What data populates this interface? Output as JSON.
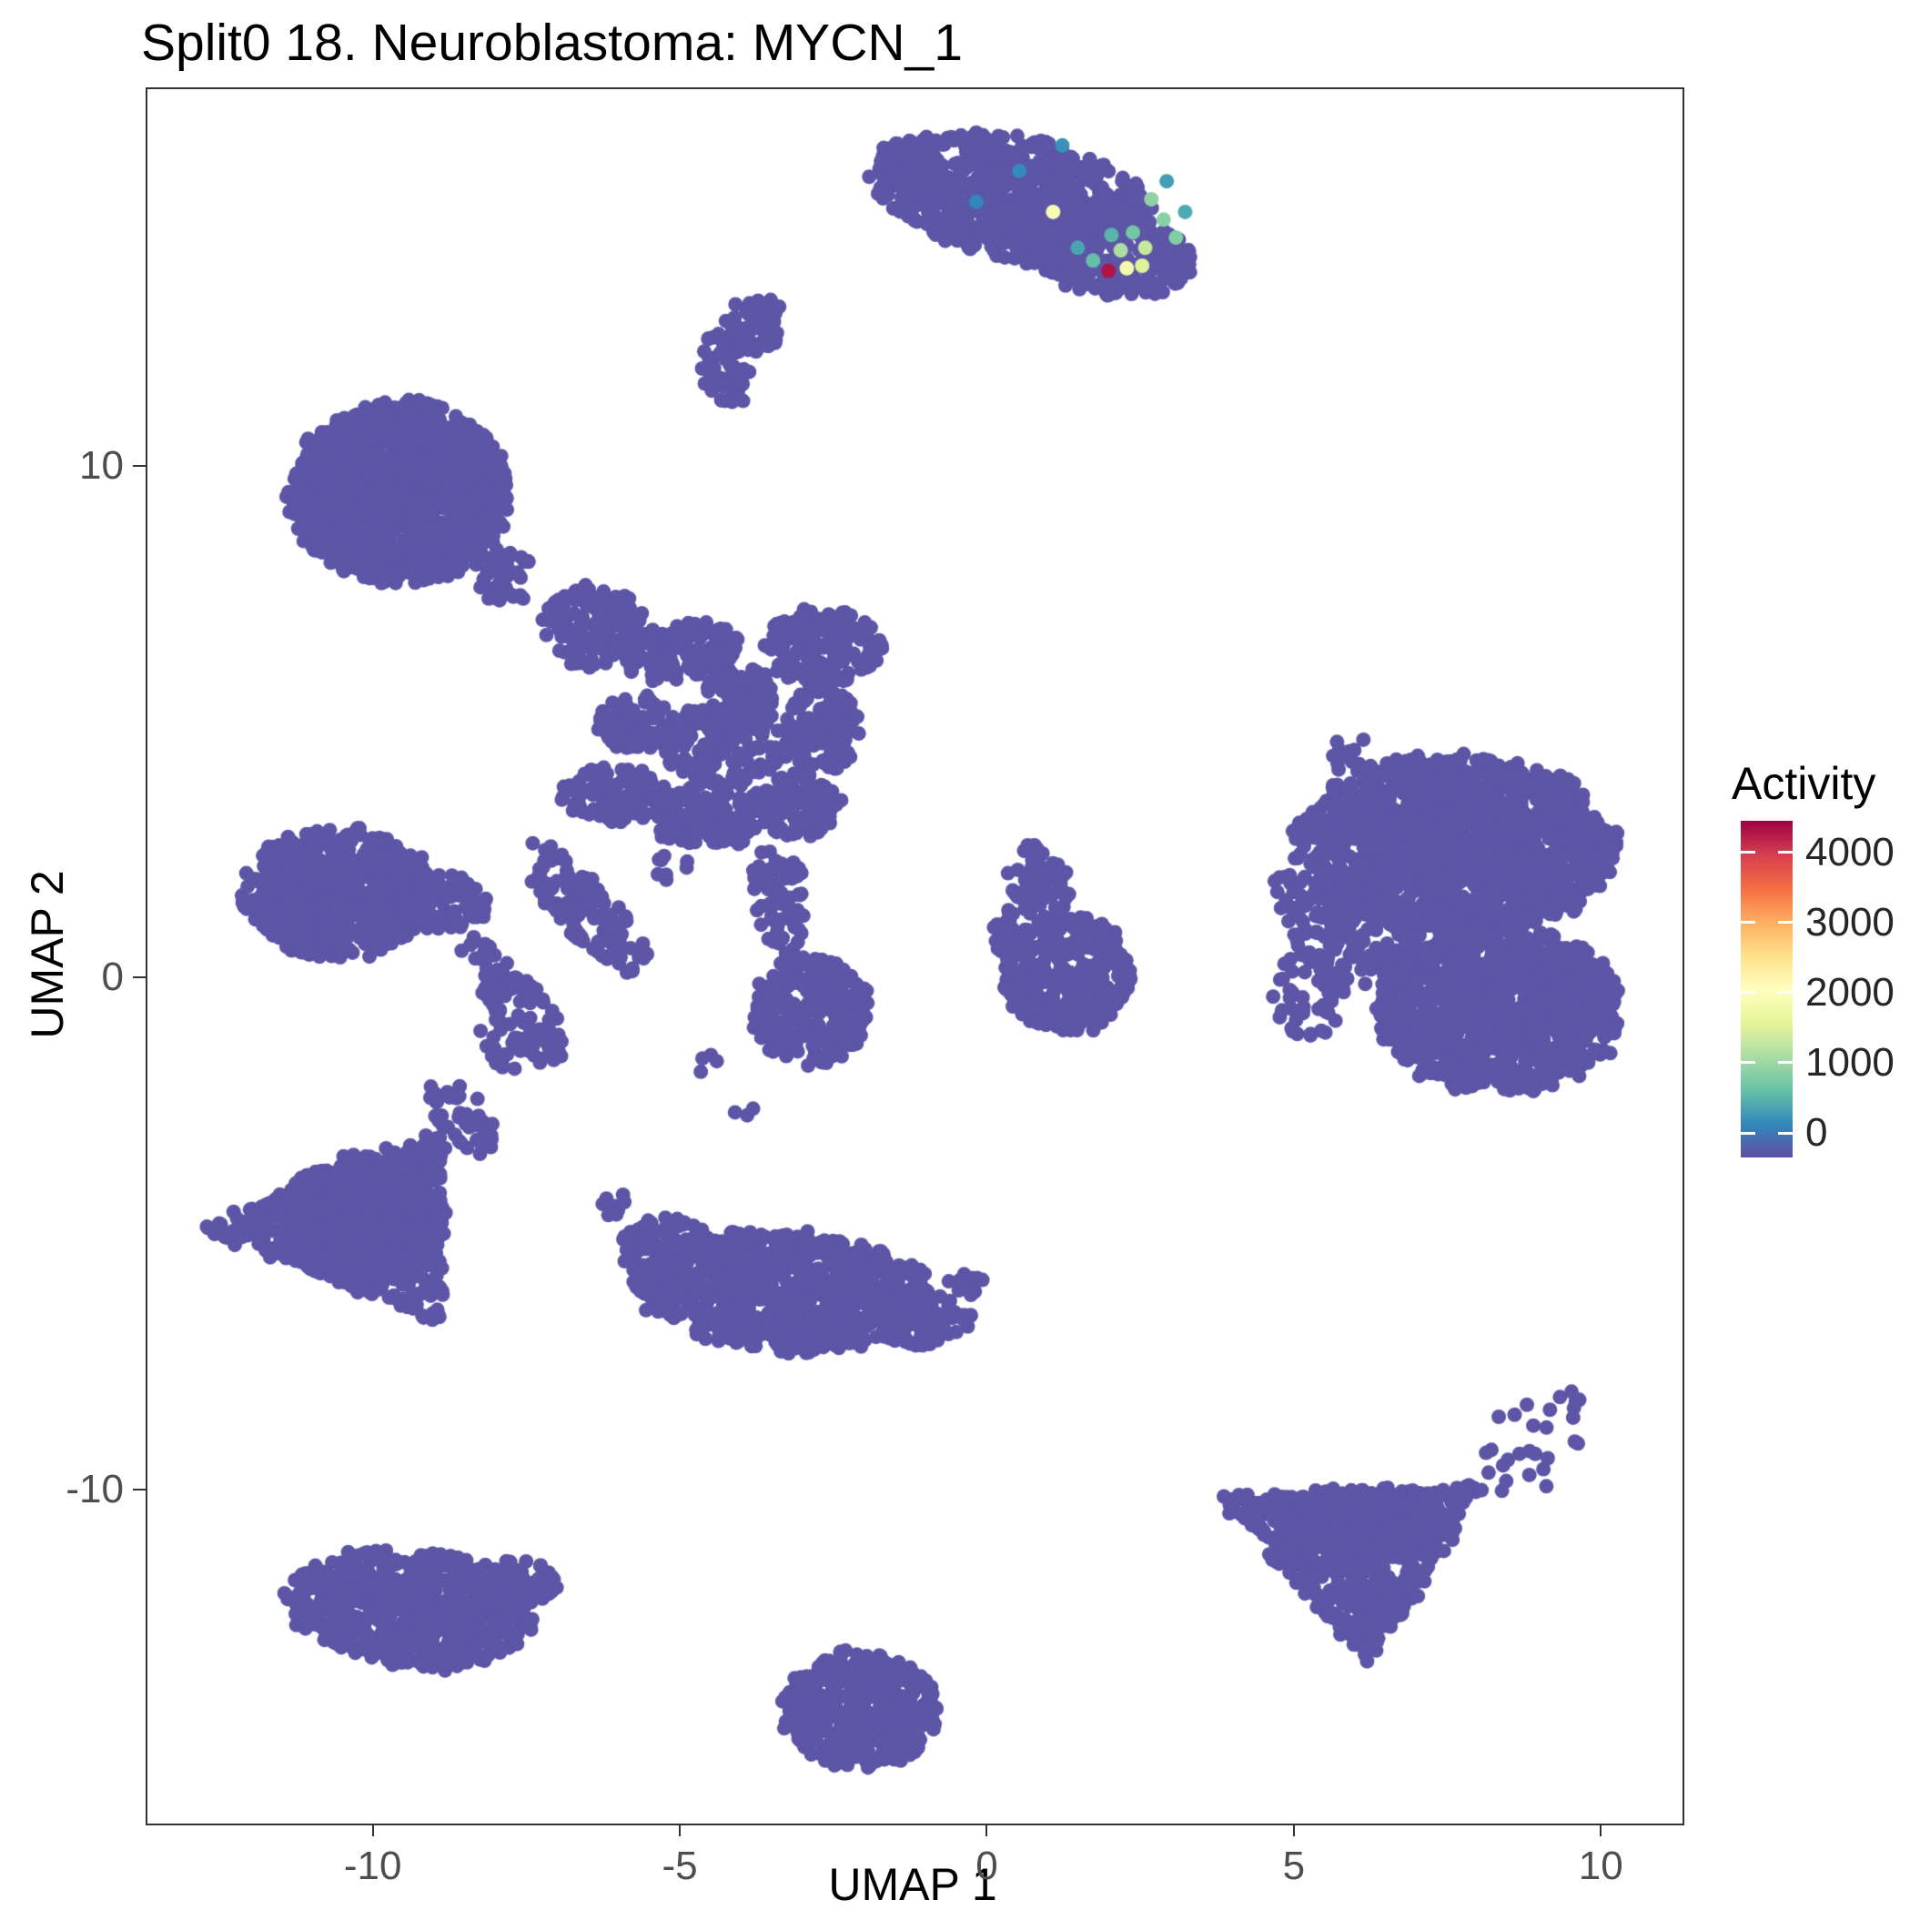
{
  "title": "Split0 18. Neuroblastoma: MYCN_1",
  "chart_data": {
    "type": "scatter",
    "title": "Split0 18. Neuroblastoma: MYCN_1",
    "xlabel": "UMAP 1",
    "ylabel": "UMAP 2",
    "xlim": [
      -13.7,
      11.3
    ],
    "ylim": [
      -16.5,
      17.4
    ],
    "x_ticks": [
      -10,
      -5,
      0,
      5,
      10
    ],
    "y_ticks": [
      -10,
      0,
      10
    ],
    "grid": false,
    "legend": {
      "title": "Activity",
      "position": "right",
      "ticks": [
        0,
        1000,
        2000,
        3000,
        4000
      ],
      "value_range": [
        -350,
        4450
      ],
      "colormap_name": "spectral-reversed",
      "colormap": [
        "#5E4FA2",
        "#3288BD",
        "#66C2A5",
        "#ABDDA4",
        "#E6F598",
        "#FFFFBF",
        "#FEE08B",
        "#FDAE61",
        "#F46D43",
        "#D53E4F",
        "#9E0142"
      ]
    },
    "style": {
      "base_point_color": "#5D55A6",
      "point_radius_px": 8,
      "panel_border_color": "#333333",
      "tick_label_color": "#4D4D4D",
      "axis_title_color": "#000000",
      "background": "#FFFFFF"
    },
    "clusters": [
      {
        "cx": 0.4,
        "cy": 15.3,
        "rx": 2.3,
        "ry": 1.15,
        "rot": -12,
        "n": 700
      },
      {
        "cx": 1.8,
        "cy": 14.3,
        "rx": 1.6,
        "ry": 0.85,
        "rot": -18,
        "n": 350
      },
      {
        "cx": -1.3,
        "cy": 15.9,
        "rx": 0.55,
        "ry": 0.5,
        "rot": 0,
        "n": 60
      },
      {
        "cx": -3.8,
        "cy": 12.8,
        "rx": 0.5,
        "ry": 0.55,
        "rot": 0,
        "n": 60
      },
      {
        "cx": -4.3,
        "cy": 11.9,
        "rx": 0.38,
        "ry": 0.75,
        "rot": 15,
        "n": 55
      },
      {
        "cx": -9.6,
        "cy": 9.5,
        "rx": 1.75,
        "ry": 1.75,
        "rot": 0,
        "n": 1400
      },
      {
        "cx": -7.9,
        "cy": 7.9,
        "rx": 0.5,
        "ry": 0.55,
        "rot": 0,
        "n": 40
      },
      {
        "cx": -6.4,
        "cy": 6.9,
        "rx": 0.85,
        "ry": 0.8,
        "rot": 0,
        "n": 140
      },
      {
        "cx": -5.0,
        "cy": 6.4,
        "rx": 0.95,
        "ry": 0.55,
        "rot": 15,
        "n": 130
      },
      {
        "cx": -2.7,
        "cy": 6.5,
        "rx": 0.95,
        "ry": 0.75,
        "rot": 0,
        "n": 170
      },
      {
        "cx": -4.0,
        "cy": 5.6,
        "rx": 0.6,
        "ry": 0.5,
        "rot": 0,
        "n": 80
      },
      {
        "cx": -5.7,
        "cy": 5.0,
        "rx": 0.65,
        "ry": 0.6,
        "rot": 0,
        "n": 90
      },
      {
        "cx": -4.3,
        "cy": 4.6,
        "rx": 1.05,
        "ry": 0.75,
        "rot": 0,
        "n": 170
      },
      {
        "cx": -2.7,
        "cy": 4.9,
        "rx": 0.6,
        "ry": 0.85,
        "rot": 0,
        "n": 110
      },
      {
        "cx": -6.1,
        "cy": 3.6,
        "rx": 0.85,
        "ry": 0.55,
        "rot": 0,
        "n": 110
      },
      {
        "cx": -4.5,
        "cy": 3.2,
        "rx": 0.95,
        "ry": 0.65,
        "rot": 10,
        "n": 150
      },
      {
        "cx": -3.1,
        "cy": 3.4,
        "rx": 0.7,
        "ry": 0.6,
        "rot": 0,
        "n": 100
      },
      {
        "cx": -6.6,
        "cy": 1.4,
        "rx": 0.5,
        "ry": 1.6,
        "rot": 38,
        "n": 130
      },
      {
        "cx": -7.6,
        "cy": -0.6,
        "rx": 0.45,
        "ry": 1.2,
        "rot": 30,
        "n": 90
      },
      {
        "cx": -3.4,
        "cy": 1.6,
        "rx": 0.45,
        "ry": 1.1,
        "rot": 8,
        "n": 70
      },
      {
        "cx": -2.9,
        "cy": -0.6,
        "rx": 0.95,
        "ry": 1.05,
        "rot": 0,
        "n": 260
      },
      {
        "cx": -5.2,
        "cy": 2.2,
        "rx": 0.3,
        "ry": 0.3,
        "rot": 0,
        "n": 8
      },
      {
        "cx": -4.6,
        "cy": -1.6,
        "rx": 0.25,
        "ry": 0.25,
        "rot": 0,
        "n": 4
      },
      {
        "cx": -4.0,
        "cy": -2.6,
        "rx": 0.2,
        "ry": 0.2,
        "rot": 0,
        "n": 3
      },
      {
        "cx": -10.6,
        "cy": 1.7,
        "rx": 1.55,
        "ry": 1.25,
        "rot": 0,
        "n": 600
      },
      {
        "cx": -8.9,
        "cy": 1.5,
        "rx": 0.8,
        "ry": 0.55,
        "rot": -20,
        "n": 90
      },
      {
        "cx": -8.3,
        "cy": 0.6,
        "rx": 0.3,
        "ry": 0.25,
        "rot": 0,
        "n": 12
      },
      {
        "shape": "triangle",
        "pts": [
          [
            -12.9,
            -4.9
          ],
          [
            -8.9,
            -2.9
          ],
          [
            -8.9,
            -6.7
          ]
        ],
        "n": 550
      },
      {
        "cx": -10.2,
        "cy": -4.7,
        "rx": 1.3,
        "ry": 1.3,
        "rot": 0,
        "n": 350
      },
      {
        "cx": -8.6,
        "cy": -2.6,
        "rx": 0.4,
        "ry": 0.9,
        "rot": 30,
        "n": 45
      },
      {
        "cx": -7.9,
        "cy": -1.3,
        "rx": 0.3,
        "ry": 0.6,
        "rot": 25,
        "n": 20
      },
      {
        "cx": -3.3,
        "cy": -6.1,
        "rx": 2.4,
        "ry": 1.15,
        "rot": -5,
        "n": 800
      },
      {
        "cx": -5.3,
        "cy": -5.2,
        "rx": 0.75,
        "ry": 0.55,
        "rot": 20,
        "n": 90
      },
      {
        "cx": -1.0,
        "cy": -6.6,
        "rx": 0.7,
        "ry": 0.6,
        "rot": 0,
        "n": 90
      },
      {
        "cx": -0.35,
        "cy": -5.9,
        "rx": 0.3,
        "ry": 0.3,
        "rot": 0,
        "n": 15
      },
      {
        "cx": -6.1,
        "cy": -4.4,
        "rx": 0.3,
        "ry": 0.3,
        "rot": 0,
        "n": 8
      },
      {
        "cx": 1.3,
        "cy": 0.1,
        "rx": 1.05,
        "ry": 1.15,
        "rot": 0,
        "n": 320
      },
      {
        "cx": 0.8,
        "cy": 1.9,
        "rx": 0.5,
        "ry": 0.75,
        "rot": 10,
        "n": 70
      },
      {
        "cx": 0.35,
        "cy": 0.9,
        "rx": 0.3,
        "ry": 0.5,
        "rot": 0,
        "n": 25
      },
      {
        "cx": 7.6,
        "cy": 2.6,
        "rx": 2.55,
        "ry": 1.75,
        "rot": 0,
        "n": 1500
      },
      {
        "cx": 8.3,
        "cy": -0.6,
        "rx": 2.0,
        "ry": 1.6,
        "rot": 0,
        "n": 1000
      },
      {
        "cx": 6.0,
        "cy": 0.8,
        "rx": 1.0,
        "ry": 1.1,
        "rot": 0,
        "n": 160
      },
      {
        "cx": 5.2,
        "cy": -0.3,
        "rx": 0.55,
        "ry": 0.9,
        "rot": 0,
        "n": 40
      },
      {
        "cx": 4.9,
        "cy": 1.6,
        "rx": 0.4,
        "ry": 0.6,
        "rot": 0,
        "n": 18
      },
      {
        "cx": 5.9,
        "cy": 4.4,
        "rx": 0.45,
        "ry": 0.35,
        "rot": 0,
        "n": 14
      },
      {
        "cx": -9.4,
        "cy": -12.3,
        "rx": 2.0,
        "ry": 1.15,
        "rot": -8,
        "n": 650
      },
      {
        "cx": -7.6,
        "cy": -11.8,
        "rx": 0.6,
        "ry": 0.45,
        "rot": 0,
        "n": 60
      },
      {
        "cx": -2.1,
        "cy": -14.3,
        "rx": 1.25,
        "ry": 1.15,
        "rot": 0,
        "n": 420
      },
      {
        "shape": "triangle",
        "pts": [
          [
            3.7,
            -10.1
          ],
          [
            8.1,
            -9.9
          ],
          [
            6.2,
            -13.4
          ]
        ],
        "n": 700
      },
      {
        "cx": 6.0,
        "cy": -10.6,
        "rx": 1.3,
        "ry": 0.7,
        "rot": 0,
        "n": 150
      },
      {
        "cx": 8.8,
        "cy": -9.2,
        "rx": 0.8,
        "ry": 1.0,
        "rot": 0,
        "n": 22
      },
      {
        "cx": 9.4,
        "cy": -8.3,
        "rx": 0.25,
        "ry": 0.35,
        "rot": 0,
        "n": 6
      }
    ],
    "highlight_points": [
      {
        "x": 1.95,
        "y": 13.85,
        "activity": 4300
      },
      {
        "x": 1.05,
        "y": 15.0,
        "activity": 1900
      },
      {
        "x": 2.25,
        "y": 13.9,
        "activity": 1800
      },
      {
        "x": 2.5,
        "y": 13.95,
        "activity": 1500
      },
      {
        "x": 2.55,
        "y": 14.3,
        "activity": 1300
      },
      {
        "x": 2.15,
        "y": 14.25,
        "activity": 1100
      },
      {
        "x": 2.65,
        "y": 15.25,
        "activity": 900
      },
      {
        "x": 2.85,
        "y": 14.85,
        "activity": 850
      },
      {
        "x": 3.05,
        "y": 14.5,
        "activity": 800
      },
      {
        "x": 2.35,
        "y": 14.6,
        "activity": 700
      },
      {
        "x": 1.7,
        "y": 14.05,
        "activity": 600
      },
      {
        "x": 2.0,
        "y": 14.55,
        "activity": 500
      },
      {
        "x": 3.2,
        "y": 15.0,
        "activity": 400
      },
      {
        "x": 1.45,
        "y": 14.3,
        "activity": 350
      },
      {
        "x": 2.9,
        "y": 15.6,
        "activity": 300
      },
      {
        "x": 1.2,
        "y": 16.3,
        "activity": 200
      },
      {
        "x": 0.5,
        "y": 15.8,
        "activity": 150
      },
      {
        "x": -0.2,
        "y": 15.2,
        "activity": 120
      }
    ]
  }
}
